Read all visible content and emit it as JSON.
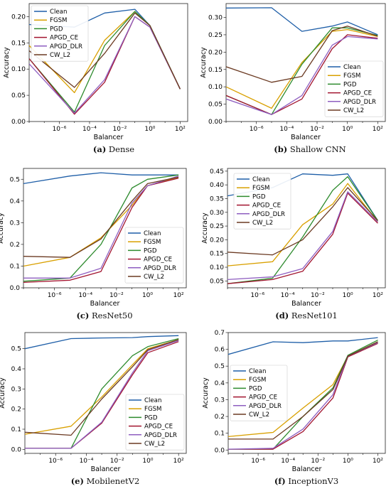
{
  "figure": {
    "series_colors": {
      "Clean": "#1f5fa8",
      "FGSM": "#d9a000",
      "PGD": "#2e8b2e",
      "APGD_CE": "#a2142f",
      "APGD_DLR": "#8e5ec0",
      "CW_L2": "#6b3a22"
    }
  },
  "chart_data": [
    {
      "type": "line",
      "caption_tag": "(a)",
      "caption_text": "Dense",
      "xlabel": "Balancer",
      "ylabel": "Accuracy",
      "x_scale": "log",
      "xlim_exp": [
        -8,
        2.5
      ],
      "x_ticks": [
        "10⁻⁶",
        "10⁻⁴",
        "10⁻²",
        "10⁰",
        "10²"
      ],
      "ylim": [
        0.0,
        0.225
      ],
      "y_ticks": [
        "0.00",
        "0.05",
        "0.10",
        "0.15",
        "0.20"
      ],
      "legend": "top-left",
      "x": [
        1e-08,
        1e-05,
        0.001,
        0.1,
        1.0,
        100.0
      ],
      "series": [
        {
          "name": "Clean",
          "values": [
            0.185,
            0.18,
            0.207,
            0.214,
            0.183,
            0.062
          ]
        },
        {
          "name": "FGSM",
          "values": [
            0.145,
            0.055,
            0.155,
            0.21,
            0.183,
            0.062
          ]
        },
        {
          "name": "PGD",
          "values": [
            0.12,
            0.018,
            0.145,
            0.21,
            0.183,
            0.062
          ]
        },
        {
          "name": "APGD_CE",
          "values": [
            0.12,
            0.014,
            0.075,
            0.2,
            0.18,
            0.062
          ]
        },
        {
          "name": "APGD_DLR",
          "values": [
            0.11,
            0.016,
            0.08,
            0.2,
            0.18,
            0.062
          ]
        },
        {
          "name": "CW_L2",
          "values": [
            0.135,
            0.065,
            0.13,
            0.207,
            0.183,
            0.062
          ]
        }
      ]
    },
    {
      "type": "line",
      "caption_tag": "(b)",
      "caption_text": "Shallow CNN",
      "xlabel": "Balancer",
      "ylabel": "Accuracy",
      "x_scale": "log",
      "xlim_exp": [
        -8,
        2.5
      ],
      "x_ticks": [
        "10⁻⁶",
        "10⁻⁴",
        "10⁻²",
        "10⁰",
        "10²"
      ],
      "ylim": [
        0.0,
        0.34
      ],
      "y_ticks": [
        "0.00",
        "0.05",
        "0.10",
        "0.15",
        "0.20",
        "0.25",
        "0.30"
      ],
      "legend": "center-right",
      "x": [
        1e-08,
        1e-05,
        0.001,
        0.1,
        1.0,
        100.0
      ],
      "series": [
        {
          "name": "Clean",
          "values": [
            0.327,
            0.328,
            0.26,
            0.275,
            0.287,
            0.25
          ]
        },
        {
          "name": "FGSM",
          "values": [
            0.1,
            0.038,
            0.17,
            0.26,
            0.265,
            0.245
          ]
        },
        {
          "name": "PGD",
          "values": [
            0.075,
            0.02,
            0.165,
            0.27,
            0.27,
            0.248
          ]
        },
        {
          "name": "APGD_CE",
          "values": [
            0.075,
            0.02,
            0.065,
            0.21,
            0.25,
            0.24
          ]
        },
        {
          "name": "APGD_DLR",
          "values": [
            0.065,
            0.02,
            0.075,
            0.22,
            0.245,
            0.238
          ]
        },
        {
          "name": "CW_L2",
          "values": [
            0.158,
            0.113,
            0.13,
            0.262,
            0.275,
            0.246
          ]
        }
      ]
    },
    {
      "type": "line",
      "caption_tag": "(c)",
      "caption_text": "ResNet50",
      "xlabel": "Balancer",
      "ylabel": "Accuracy",
      "x_scale": "log",
      "xlim_exp": [
        -8,
        2.5
      ],
      "x_ticks": [
        "10⁻⁶",
        "10⁻⁴",
        "10⁻²",
        "10⁰",
        "10²"
      ],
      "ylim": [
        0.0,
        0.55
      ],
      "y_ticks": [
        "0.0",
        "0.1",
        "0.2",
        "0.3",
        "0.4",
        "0.5"
      ],
      "legend": "center-right",
      "x": [
        1e-08,
        1e-05,
        0.001,
        0.1,
        1.0,
        100.0
      ],
      "series": [
        {
          "name": "Clean",
          "values": [
            0.48,
            0.515,
            0.53,
            0.52,
            0.52,
            0.52
          ]
        },
        {
          "name": "FGSM",
          "values": [
            0.1,
            0.14,
            0.23,
            0.38,
            0.47,
            0.51
          ]
        },
        {
          "name": "PGD",
          "values": [
            0.03,
            0.045,
            0.2,
            0.46,
            0.5,
            0.52
          ]
        },
        {
          "name": "APGD_CE",
          "values": [
            0.025,
            0.035,
            0.075,
            0.37,
            0.47,
            0.505
          ]
        },
        {
          "name": "APGD_DLR",
          "values": [
            0.045,
            0.045,
            0.09,
            0.39,
            0.47,
            0.515
          ]
        },
        {
          "name": "CW_L2",
          "values": [
            0.145,
            0.14,
            0.225,
            0.4,
            0.48,
            0.51
          ]
        }
      ]
    },
    {
      "type": "line",
      "caption_tag": "(d)",
      "caption_text": "ResNet101",
      "xlabel": "Balancer",
      "ylabel": "Accuracy",
      "x_scale": "log",
      "xlim_exp": [
        -8,
        2.5
      ],
      "x_ticks": [
        "10⁻⁶",
        "10⁻⁴",
        "10⁻²",
        "10⁰",
        "10²"
      ],
      "ylim": [
        0.025,
        0.46
      ],
      "y_ticks": [
        "0.05",
        "0.10",
        "0.15",
        "0.20",
        "0.25",
        "0.30",
        "0.35",
        "0.40",
        "0.45"
      ],
      "legend": "top-left",
      "x": [
        1e-08,
        1e-05,
        0.001,
        0.1,
        1.0,
        100.0
      ],
      "series": [
        {
          "name": "Clean",
          "values": [
            0.36,
            0.39,
            0.44,
            0.435,
            0.44,
            0.27
          ]
        },
        {
          "name": "FGSM",
          "values": [
            0.105,
            0.12,
            0.255,
            0.33,
            0.405,
            0.265
          ]
        },
        {
          "name": "PGD",
          "values": [
            0.04,
            0.06,
            0.21,
            0.38,
            0.43,
            0.27
          ]
        },
        {
          "name": "APGD_CE",
          "values": [
            0.04,
            0.055,
            0.085,
            0.22,
            0.37,
            0.26
          ]
        },
        {
          "name": "APGD_DLR",
          "values": [
            0.055,
            0.065,
            0.095,
            0.23,
            0.375,
            0.265
          ]
        },
        {
          "name": "CW_L2",
          "values": [
            0.155,
            0.145,
            0.2,
            0.32,
            0.39,
            0.27
          ]
        }
      ]
    },
    {
      "type": "line",
      "caption_tag": "(e)",
      "caption_text": "MobilenetV2",
      "xlabel": "Balancer",
      "ylabel": "Accuracy",
      "x_scale": "log",
      "xlim_exp": [
        -8,
        2.5
      ],
      "x_ticks": [
        "10⁻⁶",
        "10⁻⁴",
        "10⁻²",
        "10⁰",
        "10²"
      ],
      "ylim": [
        -0.02,
        0.58
      ],
      "y_ticks": [
        "0.0",
        "0.1",
        "0.2",
        "0.3",
        "0.4",
        "0.5"
      ],
      "legend": "center-right",
      "x": [
        1e-08,
        1e-05,
        0.001,
        0.1,
        1.0,
        100.0
      ],
      "series": [
        {
          "name": "Clean",
          "values": [
            0.5,
            0.55,
            0.553,
            0.555,
            0.56,
            0.565
          ]
        },
        {
          "name": "FGSM",
          "values": [
            0.075,
            0.115,
            0.26,
            0.42,
            0.5,
            0.545
          ]
        },
        {
          "name": "PGD",
          "values": [
            0.005,
            0.005,
            0.3,
            0.465,
            0.51,
            0.55
          ]
        },
        {
          "name": "APGD_CE",
          "values": [
            0.005,
            0.005,
            0.13,
            0.37,
            0.48,
            0.535
          ]
        },
        {
          "name": "APGD_DLR",
          "values": [
            0.005,
            0.005,
            0.135,
            0.38,
            0.49,
            0.54
          ]
        },
        {
          "name": "CW_L2",
          "values": [
            0.085,
            0.07,
            0.25,
            0.41,
            0.495,
            0.545
          ]
        }
      ]
    },
    {
      "type": "line",
      "caption_tag": "(f)",
      "caption_text": "InceptionV3",
      "xlabel": "Balancer",
      "ylabel": "Accuracy",
      "x_scale": "log",
      "xlim_exp": [
        -8,
        2.5
      ],
      "x_ticks": [
        "10⁻⁶",
        "10⁻⁴",
        "10⁻²",
        "10⁰",
        "10²"
      ],
      "ylim": [
        -0.02,
        0.7
      ],
      "y_ticks": [
        "0.0",
        "0.1",
        "0.2",
        "0.3",
        "0.4",
        "0.5",
        "0.6",
        "0.7"
      ],
      "legend": "center-left",
      "x": [
        1e-08,
        1e-05,
        0.001,
        0.1,
        1.0,
        100.0
      ],
      "series": [
        {
          "name": "Clean",
          "values": [
            0.57,
            0.645,
            0.64,
            0.65,
            0.65,
            0.67
          ]
        },
        {
          "name": "FGSM",
          "values": [
            0.08,
            0.105,
            0.25,
            0.39,
            0.56,
            0.645
          ]
        },
        {
          "name": "PGD",
          "values": [
            0.005,
            0.005,
            0.2,
            0.37,
            0.565,
            0.655
          ]
        },
        {
          "name": "APGD_CE",
          "values": [
            0.005,
            0.005,
            0.11,
            0.31,
            0.555,
            0.635
          ]
        },
        {
          "name": "APGD_DLR",
          "values": [
            0.005,
            0.01,
            0.125,
            0.33,
            0.56,
            0.64
          ]
        },
        {
          "name": "CW_L2",
          "values": [
            0.065,
            0.065,
            0.2,
            0.36,
            0.56,
            0.645
          ]
        }
      ]
    }
  ]
}
